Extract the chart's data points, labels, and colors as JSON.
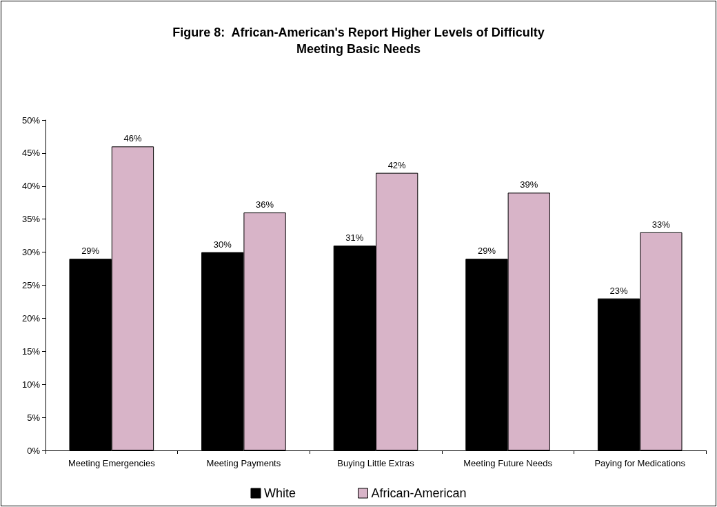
{
  "chart_data": {
    "type": "bar",
    "title": "Figure 8:  African-American's Report Higher Levels of Difficulty\nMeeting Basic Needs",
    "categories": [
      "Meeting Emergencies",
      "Meeting Payments",
      "Buying Little Extras",
      "Meeting Future Needs",
      "Paying for Medications"
    ],
    "series": [
      {
        "name": "White",
        "color": "#000000",
        "values": [
          29,
          30,
          31,
          29,
          23
        ],
        "value_labels": [
          "29%",
          "30%",
          "31%",
          "29%",
          "23%"
        ]
      },
      {
        "name": "African-American",
        "color": "#d8b4c8",
        "values": [
          46,
          36,
          42,
          39,
          33
        ],
        "value_labels": [
          "46%",
          "36%",
          "42%",
          "39%",
          "33%"
        ]
      }
    ],
    "ylim": [
      0,
      50
    ],
    "yticks": [
      {
        "value": 0,
        "label": "0%"
      },
      {
        "value": 5,
        "label": "5%"
      },
      {
        "value": 10,
        "label": "10%"
      },
      {
        "value": 15,
        "label": "15%"
      },
      {
        "value": 20,
        "label": "20%"
      },
      {
        "value": 25,
        "label": "25%"
      },
      {
        "value": 30,
        "label": "30%"
      },
      {
        "value": 35,
        "label": "35%"
      },
      {
        "value": 40,
        "label": "40%"
      },
      {
        "value": 45,
        "label": "45%"
      },
      {
        "value": 50,
        "label": "50%"
      }
    ],
    "grid": false,
    "legend": "bottom"
  }
}
